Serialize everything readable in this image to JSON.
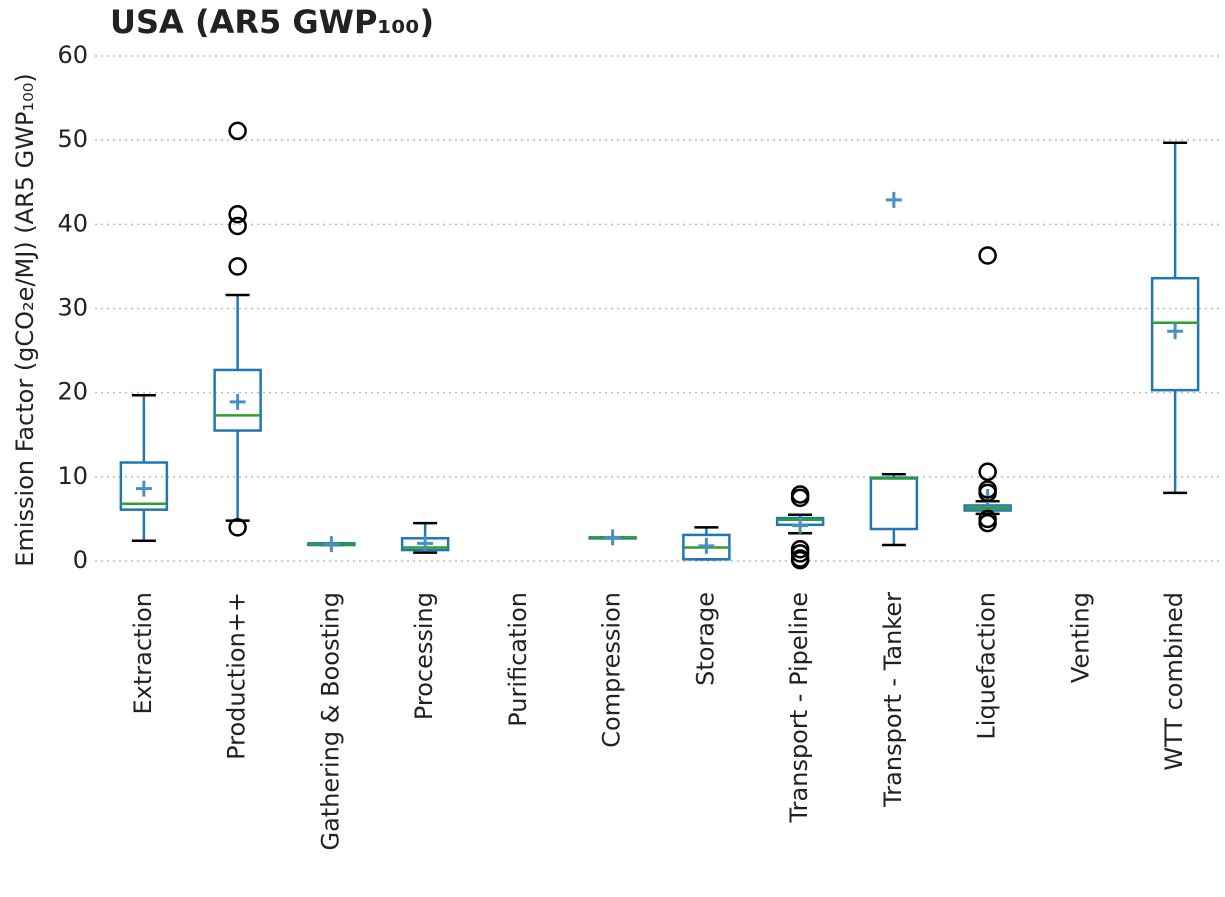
{
  "chart_data": {
    "type": "box",
    "title": "USA (AR5 GWP₁₀₀)",
    "y_label": "Emission Factor (gCO₂e/MJ) (AR5 GWP₁₀₀)",
    "categories": [
      "Extraction",
      "Production++",
      "Gathering & Boosting",
      "Processing",
      "Purification",
      "Compression",
      "Storage",
      "Transport - Pipeline",
      "Transport - Tanker",
      "Liquefaction",
      "Venting",
      "WTT combined"
    ],
    "boxes": [
      {
        "whislo": 2.4,
        "q1": 6.1,
        "med": 6.8,
        "q3": 11.7,
        "whishi": 19.7,
        "mean": 8.6,
        "fliers": []
      },
      {
        "whislo": 4.8,
        "q1": 15.5,
        "med": 17.3,
        "q3": 22.7,
        "whishi": 31.6,
        "mean": 18.9,
        "fliers": [
          51.1,
          41.2,
          39.8,
          35.0,
          4.0
        ]
      },
      {
        "whislo": 1.9,
        "q1": 1.9,
        "med": 2.0,
        "q3": 2.1,
        "whishi": 2.1,
        "mean": 2.0,
        "fliers": []
      },
      {
        "whislo": 1.0,
        "q1": 1.3,
        "med": 1.6,
        "q3": 2.7,
        "whishi": 4.5,
        "mean": 2.1,
        "fliers": []
      },
      null,
      {
        "whislo": 2.8,
        "q1": 2.8,
        "med": 2.8,
        "q3": 2.8,
        "whishi": 2.8,
        "mean": 2.8,
        "fliers": []
      },
      {
        "whislo": 0.2,
        "q1": 0.2,
        "med": 1.6,
        "q3": 3.1,
        "whishi": 4.0,
        "mean": 1.8,
        "fliers": []
      },
      {
        "whislo": 3.3,
        "q1": 4.3,
        "med": 4.9,
        "q3": 5.1,
        "whishi": 5.5,
        "mean": 4.2,
        "fliers": [
          7.9,
          7.5,
          1.4,
          0.9,
          0.3,
          0.1
        ]
      },
      {
        "whislo": 1.9,
        "q1": 3.8,
        "med": 9.8,
        "q3": 9.9,
        "whishi": 10.3,
        "mean": 42.9,
        "fliers": []
      },
      {
        "whislo": 5.6,
        "q1": 6.0,
        "med": 6.3,
        "q3": 6.6,
        "whishi": 7.1,
        "mean": 7.6,
        "fliers": [
          36.3,
          10.6,
          8.5,
          8.1,
          5.0,
          4.5
        ]
      },
      null,
      {
        "whislo": 8.1,
        "q1": 20.3,
        "med": 28.3,
        "q3": 33.6,
        "whishi": 49.7,
        "mean": 27.3,
        "fliers": []
      }
    ],
    "box_color": "#1f77b4",
    "median_color": "#2ca02c",
    "mean_color": "#4a8fc2",
    "flier_color": "#000000",
    "ylim": [
      0,
      60
    ],
    "yticks": [
      0,
      10,
      20,
      30,
      40,
      50,
      60
    ],
    "grid": true
  }
}
